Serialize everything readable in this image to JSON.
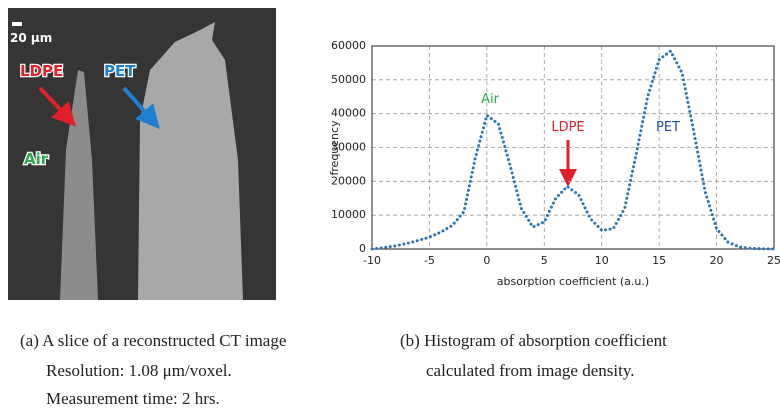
{
  "image_labels": {
    "scale_bar": "20 µm",
    "ldpe": "LDPE",
    "pet": "PET",
    "air": "Air"
  },
  "chart_data": {
    "type": "line",
    "xlabel": "absorption coefficient (a.u.)",
    "ylabel": "frequency",
    "annotations": [
      "Air",
      "LDPE",
      "PET"
    ],
    "x": [
      -10,
      -9,
      -8,
      -7,
      -6,
      -5,
      -4,
      -3,
      -2,
      -1,
      0,
      1,
      2,
      3,
      4,
      5,
      6,
      7,
      8,
      9,
      10,
      11,
      12,
      13,
      14,
      15,
      16,
      17,
      18,
      19,
      20,
      21,
      22,
      23,
      24,
      25
    ],
    "values": [
      0,
      400,
      900,
      1600,
      2500,
      3500,
      5000,
      7000,
      11000,
      27000,
      39500,
      37000,
      25000,
      12000,
      6500,
      8000,
      15000,
      18500,
      16000,
      9000,
      5500,
      6000,
      12000,
      28000,
      45000,
      56000,
      58500,
      52000,
      35000,
      17000,
      6000,
      2000,
      600,
      200,
      50,
      0
    ],
    "color": "#2e75b6",
    "xlim": [
      -10,
      25
    ],
    "xticks": [
      -10,
      -5,
      0,
      5,
      10,
      15,
      20,
      25
    ],
    "ylim": [
      0,
      60000
    ],
    "yticks": [
      0,
      10000,
      20000,
      30000,
      40000,
      50000,
      60000
    ],
    "grid": true
  },
  "captions": {
    "a": [
      "(a) A slice of a reconstructed CT image",
      "Resolution: 1.08 μm/voxel.",
      "Measurement time: 2 hrs."
    ],
    "b": [
      "(b) Histogram of absorption coefficient",
      "calculated from image density."
    ]
  }
}
